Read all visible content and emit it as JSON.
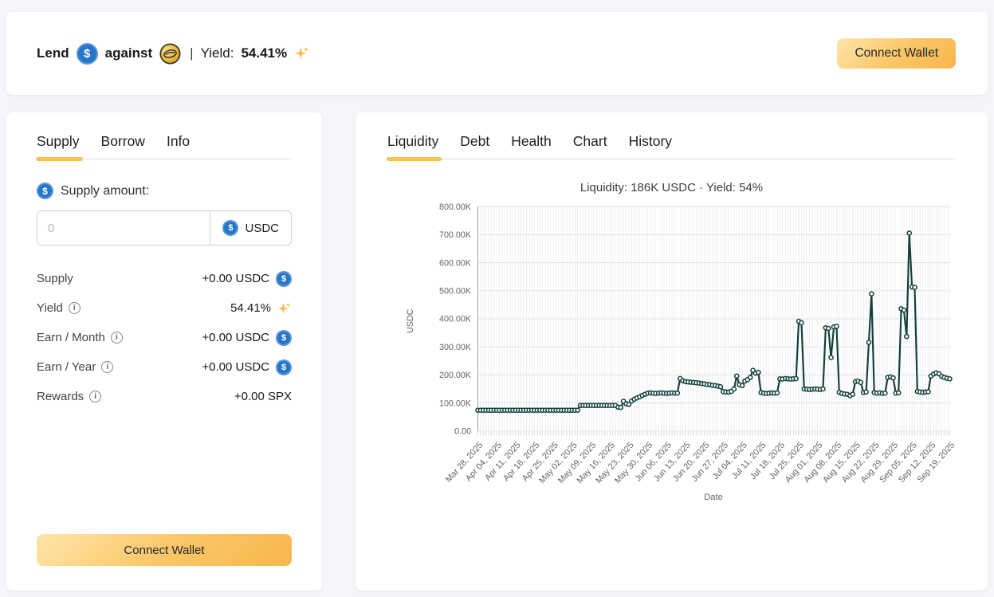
{
  "header": {
    "lend_label": "Lend",
    "against_label": "against",
    "separator": "|",
    "yield_label": "Yield:",
    "yield_value": "54.41%",
    "usdc_symbol": "$",
    "connect_wallet_label": "Connect Wallet"
  },
  "left_panel": {
    "tabs": [
      {
        "label": "Supply",
        "active": true
      },
      {
        "label": "Borrow",
        "active": false
      },
      {
        "label": "Info",
        "active": false
      }
    ],
    "supply_amount_label": "Supply amount:",
    "amount_input": {
      "value": "",
      "placeholder": "0"
    },
    "currency_label": "USDC",
    "rows": [
      {
        "label": "Supply",
        "value": "+0.00 USDC",
        "has_info": false,
        "unit_icon": "usdc-icon"
      },
      {
        "label": "Yield",
        "value": "54.41%",
        "has_info": true,
        "unit_icon": "sparkles-icon"
      },
      {
        "label": "Earn / Month",
        "value": "+0.00 USDC",
        "has_info": true,
        "unit_icon": "usdc-icon"
      },
      {
        "label": "Earn / Year",
        "value": "+0.00 USDC",
        "has_info": true,
        "unit_icon": "usdc-icon"
      },
      {
        "label": "Rewards",
        "value": "+0.00 SPX",
        "has_info": true,
        "unit_icon": "none"
      }
    ],
    "connect_wallet_label": "Connect Wallet"
  },
  "right_panel": {
    "tabs": [
      {
        "label": "Liquidity",
        "active": true
      },
      {
        "label": "Debt",
        "active": false
      },
      {
        "label": "Health",
        "active": false
      },
      {
        "label": "Chart",
        "active": false
      },
      {
        "label": "History",
        "active": false
      }
    ]
  },
  "chart_data": {
    "type": "line",
    "title": "Liquidity: 186K USDC · Yield: 54%",
    "xlabel": "Date",
    "ylabel": "USDC",
    "x_frequency": "daily",
    "x_start": "Mar 28, 2025",
    "x_tick_interval_days": 7,
    "x_tick_labels": [
      "Mar 28, 2025",
      "Apr 04, 2025",
      "Apr 11, 2025",
      "Apr 18, 2025",
      "Apr 25, 2025",
      "May 02, 2025",
      "May 09, 2025",
      "May 16, 2025",
      "May 23, 2025",
      "May 30, 2025",
      "Jun 06, 2025",
      "Jun 13, 2025",
      "Jun 20, 2025",
      "Jun 27, 2025",
      "Jul 04, 2025",
      "Jul 11, 2025",
      "Jul 18, 2025",
      "Jul 25, 2025",
      "Aug 01, 2025",
      "Aug 08, 2025",
      "Aug 15, 2025",
      "Aug 22, 2025",
      "Aug 29, 2025",
      "Sep 05, 2025",
      "Sep 12, 2025",
      "Sep 19, 2025"
    ],
    "ylim_k": [
      0,
      800
    ],
    "y_ticks": [
      {
        "value": 0,
        "label": "0.00"
      },
      {
        "value": 100,
        "label": "100.00K"
      },
      {
        "value": 200,
        "label": "200.00K"
      },
      {
        "value": 300,
        "label": "300.00K"
      },
      {
        "value": 400,
        "label": "400.00K"
      },
      {
        "value": 500,
        "label": "500.00K"
      },
      {
        "value": 600,
        "label": "600.00K"
      },
      {
        "value": 700,
        "label": "700.00K"
      },
      {
        "value": 800,
        "label": "800.00K"
      }
    ],
    "grid": true,
    "legend": false,
    "line_color": "#12403c",
    "marker": "open-circle",
    "values_k": [
      74,
      74,
      74,
      74,
      74,
      74,
      74,
      74,
      74,
      74,
      74,
      74,
      74,
      74,
      74,
      74,
      74,
      74,
      74,
      74,
      74,
      74,
      74,
      74,
      74,
      74,
      74,
      74,
      74,
      74,
      74,
      74,
      74,
      74,
      74,
      74,
      74,
      74,
      91,
      91,
      91,
      91,
      91,
      91,
      91,
      91,
      91,
      91,
      91,
      91,
      91,
      91,
      85,
      84,
      106,
      97,
      95,
      107,
      113,
      118,
      122,
      127,
      131,
      135,
      136,
      135,
      134,
      135,
      136,
      135,
      134,
      135,
      136,
      135,
      135,
      187,
      179,
      176,
      175,
      174,
      173,
      172,
      171,
      169,
      168,
      166,
      165,
      163,
      162,
      160,
      158,
      140,
      139,
      139,
      141,
      150,
      196,
      165,
      162,
      178,
      183,
      191,
      216,
      206,
      209,
      137,
      135,
      134,
      135,
      136,
      135,
      136,
      186,
      185,
      187,
      186,
      185,
      186,
      187,
      391,
      386,
      150,
      149,
      148,
      149,
      150,
      149,
      148,
      150,
      368,
      366,
      262,
      371,
      373,
      138,
      134,
      132,
      131,
      126,
      131,
      176,
      178,
      173,
      137,
      139,
      316,
      489,
      137,
      135,
      136,
      134,
      135,
      191,
      193,
      189,
      135,
      136,
      436,
      431,
      337,
      706,
      514,
      512,
      141,
      139,
      138,
      139,
      140,
      196,
      203,
      207,
      204,
      195,
      191,
      188,
      186
    ]
  }
}
